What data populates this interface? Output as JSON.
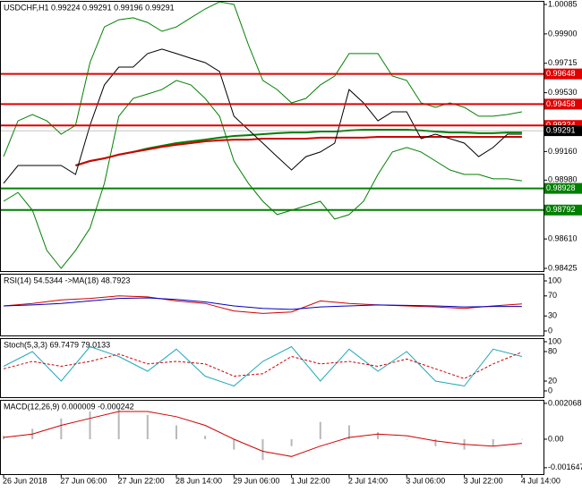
{
  "chart_data": [
    {
      "type": "line",
      "title": "USDCHF,H1 0.99224 0.99291 0.99196 0.99291",
      "x": [
        0,
        4,
        8,
        12,
        16,
        20,
        24,
        28,
        32,
        36,
        40,
        44,
        48,
        52,
        56,
        60,
        64,
        68,
        72,
        76,
        80,
        84,
        88,
        92,
        96,
        100,
        104,
        108,
        112,
        116,
        120,
        124,
        128,
        132,
        136,
        140,
        144
      ],
      "xlim": [
        -1,
        150
      ],
      "ylim": [
        0.98425,
        1.00085
      ],
      "yticks": [
        1.00085,
        {
          "value": 0.999,
          "label": "0.99900"
        },
        0.99715,
        {
          "value": 0.9953,
          "label": "0.99530"
        },
        {
          "value": 0.9916,
          "label": "0.99160"
        },
        {
          "value": 0.9898,
          "label": "0.98980"
        },
        {
          "value": 0.9861,
          "label": "0.98610"
        },
        0.98425
      ],
      "series": [
        {
          "color": "#008000",
          "values": [
            0.99128,
            0.99353,
            0.99393,
            0.99353,
            0.99269,
            0.99325,
            0.99719,
            0.99944,
            0.99989,
            1.00001,
            0.99972,
            0.99916,
            0.99944,
            1.00001,
            1.00057,
            1.00102,
            1.00085,
            0.99832,
            0.99607,
            0.9955,
            0.99466,
            0.99494,
            0.99579,
            0.99635,
            0.99776,
            0.99776,
            0.99776,
            0.99635,
            0.99607,
            0.99466,
            0.99438,
            0.99466,
            0.99438,
            0.99382,
            0.99382,
            0.99393,
            0.9941
          ]
        },
        {
          "color": "#008000",
          "values": [
            0.98847,
            0.98903,
            0.98791,
            0.98538,
            0.98425,
            0.98538,
            0.98678,
            0.9896,
            0.99382,
            0.99494,
            0.99522,
            0.9955,
            0.99607,
            0.99579,
            0.99494,
            0.99382,
            0.991,
            0.9896,
            0.98847,
            0.98763,
            0.98791,
            0.98819,
            0.98847,
            0.98735,
            0.98763,
            0.98847,
            0.99016,
            0.99157,
            0.99185,
            0.99157,
            0.991,
            0.99044,
            0.99016,
            0.99016,
            0.98988,
            0.98988,
            0.98976
          ]
        },
        {
          "color": "#008000",
          "values": [
            null,
            null,
            null,
            null,
            null,
            0.99072,
            0.991,
            0.99117,
            0.9914,
            0.99157,
            0.99179,
            0.99196,
            0.99213,
            0.99224,
            0.99235,
            0.99247,
            0.99258,
            0.99263,
            0.99269,
            0.99275,
            0.9928,
            0.9928,
            0.99286,
            0.99286,
            0.99292,
            0.99297,
            0.99297,
            0.99297,
            0.99297,
            0.99292,
            0.99286,
            0.9928,
            0.9928,
            0.99275,
            0.99275,
            0.9928,
            0.9928
          ]
        },
        {
          "color": "#d00000",
          "values": [
            null,
            null,
            null,
            null,
            null,
            0.99072,
            0.991,
            0.99117,
            0.9914,
            0.99157,
            0.99173,
            0.9919,
            0.99202,
            0.99213,
            0.99224,
            0.9923,
            0.99235,
            0.99235,
            0.99241,
            0.99241,
            0.99241,
            0.99241,
            0.99247,
            0.99247,
            0.99247,
            0.99247,
            0.99252,
            0.99252,
            0.99252,
            0.99252,
            0.99252,
            0.99252,
            0.99252,
            0.99252,
            0.99252,
            0.99252,
            0.99252
          ]
        },
        {
          "color": "#000000",
          "values": [
            0.9896,
            0.99072,
            0.99072,
            0.99072,
            0.99072,
            0.99016,
            0.99325,
            0.99579,
            0.99691,
            0.99691,
            0.99776,
            0.99804,
            0.99776,
            0.99747,
            0.99719,
            0.99663,
            0.99382,
            0.99297,
            0.99213,
            0.99128,
            0.99044,
            0.99128,
            0.99157,
            0.99213,
            0.9955,
            0.99466,
            0.99353,
            0.9941,
            0.9941,
            0.99241,
            0.99269,
            0.99241,
            0.99213,
            0.99128,
            0.99185,
            0.99269,
            0.99269
          ]
        }
      ],
      "levels": [
        {
          "value": 0.99648,
          "color": "#e00000"
        },
        {
          "value": 0.99458,
          "color": "#e00000"
        },
        {
          "value": 0.99324,
          "color": "#e00000"
        },
        {
          "value": 0.98928,
          "color": "#008000"
        },
        {
          "value": 0.98792,
          "color": "#008000"
        }
      ],
      "current_price": 0.99291
    },
    {
      "type": "line",
      "title": "RSI(14) 54.5344 ->MA(18) 48.7923",
      "x": [
        0,
        8,
        16,
        24,
        32,
        40,
        48,
        56,
        64,
        72,
        80,
        88,
        96,
        104,
        112,
        120,
        128,
        136,
        144
      ],
      "xlim": [
        -1,
        150
      ],
      "ylim": [
        0,
        100
      ],
      "yticks": [
        100,
        70,
        30,
        0
      ],
      "series": [
        {
          "color": "#d00000",
          "values": [
            50,
            55,
            62,
            65,
            70,
            68,
            60,
            55,
            40,
            35,
            38,
            60,
            55,
            52,
            50,
            48,
            45,
            50,
            54
          ]
        },
        {
          "color": "#0000c0",
          "values": [
            50,
            52,
            55,
            60,
            65,
            66,
            63,
            58,
            50,
            45,
            43,
            48,
            50,
            52,
            51,
            50,
            48,
            49,
            49
          ]
        }
      ]
    },
    {
      "type": "line",
      "title": "Stoch(5,3,3) 69.7479 79.0133",
      "x": [
        0,
        8,
        16,
        24,
        32,
        40,
        48,
        56,
        64,
        72,
        80,
        88,
        96,
        104,
        112,
        120,
        128,
        136,
        144
      ],
      "xlim": [
        -1,
        150
      ],
      "ylim": [
        0,
        100
      ],
      "yticks": [
        100,
        80,
        20,
        0
      ],
      "series": [
        {
          "color": "#20a8b8",
          "values": [
            50,
            80,
            20,
            90,
            70,
            40,
            85,
            30,
            10,
            60,
            90,
            20,
            85,
            40,
            80,
            20,
            10,
            85,
            70
          ]
        },
        {
          "color": "#d00000",
          "dashed": true,
          "values": [
            45,
            60,
            50,
            60,
            75,
            55,
            60,
            55,
            30,
            35,
            70,
            55,
            60,
            50,
            65,
            45,
            25,
            55,
            79
          ]
        }
      ]
    },
    {
      "type": "line",
      "title": "MACD(12,26,9) 0.000009 -0.000242",
      "x": [
        0,
        8,
        16,
        24,
        32,
        40,
        48,
        56,
        64,
        72,
        80,
        88,
        96,
        104,
        112,
        120,
        128,
        136,
        144
      ],
      "xlim": [
        -1,
        150
      ],
      "ylim": [
        -0.00186,
        0.00227
      ],
      "yticks": [
        0.002068,
        {
          "value": 0,
          "label": "0.00"
        },
        -0.001647
      ],
      "xticks": [
        {
          "value": 0,
          "label": "26 Jun 2018"
        },
        {
          "value": 16,
          "label": "27 Jun 06:00"
        },
        {
          "value": 32,
          "label": "27 Jun 22:00"
        },
        {
          "value": 48,
          "label": "28 Jun 14:00"
        },
        {
          "value": 64,
          "label": "29 Jun 06:00"
        },
        {
          "value": 80,
          "label": "1 Jul 22:00"
        },
        {
          "value": 96,
          "label": "2 Jul 14:00"
        },
        {
          "value": 112,
          "label": "3 Jul 06:00"
        },
        {
          "value": 128,
          "label": "3 Jul 22:00"
        },
        {
          "value": 144,
          "label": "4 Jul 14:00"
        }
      ],
      "series": [
        {
          "color": "#b8b8b8",
          "histogram": true,
          "values": [
            0.0002,
            0.0006,
            0.0012,
            0.0016,
            0.0018,
            0.0014,
            0.0008,
            0.0002,
            -0.0006,
            -0.0012,
            -0.0004,
            0.001,
            0.0008,
            0.0004,
            0,
            -0.0004,
            -0.0006,
            -0.0004,
            1e-05
          ]
        },
        {
          "color": "#d00000",
          "values": [
            0.0001,
            0.0003,
            0.0008,
            0.0012,
            0.0016,
            0.0016,
            0.0013,
            0.0008,
            0,
            -0.0007,
            -0.001,
            -0.0004,
            0.0001,
            0.0003,
            0.0002,
            -0.0001,
            -0.0003,
            -0.0004,
            -0.00024
          ]
        }
      ]
    }
  ]
}
